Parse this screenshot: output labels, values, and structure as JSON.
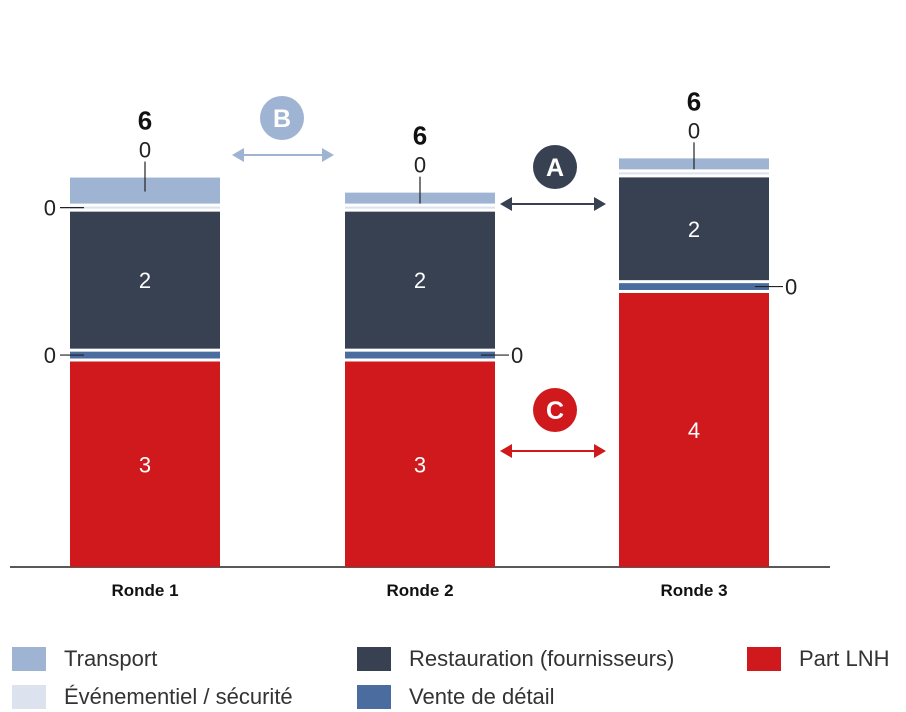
{
  "chart_data": {
    "type": "bar",
    "stacked": true,
    "categories": [
      "Ronde 1",
      "Ronde 2",
      "Ronde 3"
    ],
    "totals": [
      "6",
      "6",
      "6"
    ],
    "series": [
      {
        "name": "Part LNH",
        "color": "#d0191c",
        "values": [
          3,
          3,
          4
        ],
        "labels": [
          "3",
          "3",
          "4"
        ]
      },
      {
        "name": "Vente de détail",
        "color": "#4a6c9e",
        "values": [
          0.1,
          0.1,
          0.1
        ],
        "labels": [
          "0",
          "0",
          "0"
        ]
      },
      {
        "name": "Restauration (fournisseurs)",
        "color": "#374151",
        "values": [
          2,
          2,
          1.5
        ],
        "labels": [
          "2",
          "2",
          "2"
        ]
      },
      {
        "name": "Événementiel / sécurité",
        "color": "#dde3ee",
        "values": [
          0.03,
          0.03,
          0.03
        ],
        "labels": [
          "0",
          "",
          ""
        ]
      },
      {
        "name": "Transport",
        "color": "#9fb3d3",
        "values": [
          0.38,
          0.16,
          0.16
        ],
        "labels": [
          "0",
          "0",
          "0"
        ]
      }
    ],
    "annotations": [
      {
        "letter": "B",
        "color": "#9fb3d3"
      },
      {
        "letter": "A",
        "color": "#374151"
      },
      {
        "letter": "C",
        "color": "#d0191c"
      }
    ],
    "grid": false,
    "legend_position": "bottom"
  },
  "legend": {
    "items": [
      {
        "label": "Transport",
        "color": "#9fb3d3"
      },
      {
        "label": "Restauration (fournisseurs)",
        "color": "#374151"
      },
      {
        "label": "Part LNH",
        "color": "#d0191c"
      },
      {
        "label": "Événementiel / sécurité",
        "color": "#dde3ee"
      },
      {
        "label": "Vente de détail",
        "color": "#4a6c9e"
      }
    ]
  }
}
